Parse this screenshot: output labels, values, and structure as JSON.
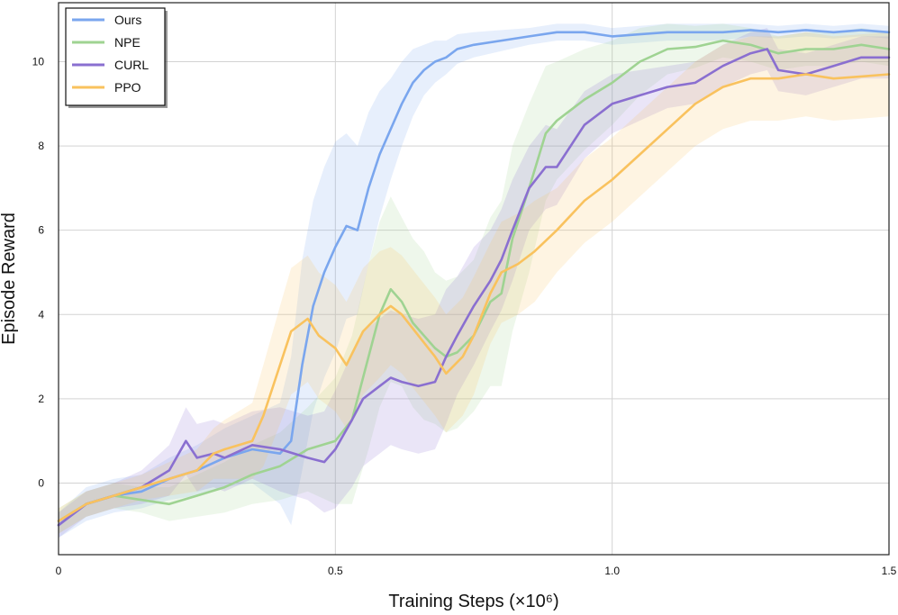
{
  "chart_data": {
    "type": "line",
    "title": "",
    "xlabel": "Training Steps (×10⁶)",
    "ylabel": "Episode Reward",
    "xlim": [
      0,
      1.5
    ],
    "ylim": [
      -1.7,
      11.4
    ],
    "x_ticks": [
      {
        "value": 0,
        "label": "0"
      },
      {
        "value": 0.5,
        "label": "0.5"
      },
      {
        "value": 1.0,
        "label": "1.0"
      },
      {
        "value": 1.5,
        "label": "1.5"
      }
    ],
    "y_ticks": [
      {
        "value": 0,
        "label": "0"
      },
      {
        "value": 2,
        "label": "2"
      },
      {
        "value": 4,
        "label": "4"
      },
      {
        "value": 6,
        "label": "6"
      },
      {
        "value": 8,
        "label": "8"
      },
      {
        "value": 10,
        "label": "10"
      }
    ],
    "grid": true,
    "legend_position": "top-left",
    "series": [
      {
        "name": "Ours",
        "color": "#7aa6ee",
        "x": [
          0,
          0.05,
          0.1,
          0.15,
          0.2,
          0.25,
          0.3,
          0.35,
          0.4,
          0.42,
          0.44,
          0.46,
          0.48,
          0.5,
          0.52,
          0.54,
          0.56,
          0.58,
          0.6,
          0.62,
          0.64,
          0.66,
          0.68,
          0.7,
          0.72,
          0.75,
          0.8,
          0.85,
          0.9,
          0.95,
          1.0,
          1.05,
          1.1,
          1.15,
          1.2,
          1.25,
          1.3,
          1.35,
          1.4,
          1.45,
          1.5
        ],
        "y": [
          -1.0,
          -0.5,
          -0.3,
          -0.2,
          0.1,
          0.3,
          0.6,
          0.8,
          0.7,
          1.0,
          2.8,
          4.2,
          5.0,
          5.6,
          6.1,
          6.0,
          7.0,
          7.8,
          8.4,
          9.0,
          9.5,
          9.8,
          10.0,
          10.1,
          10.3,
          10.4,
          10.5,
          10.6,
          10.7,
          10.7,
          10.6,
          10.65,
          10.7,
          10.7,
          10.7,
          10.75,
          10.7,
          10.75,
          10.7,
          10.75,
          10.7
        ],
        "band": [
          0.3,
          0.4,
          0.4,
          0.4,
          0.5,
          0.6,
          0.7,
          0.8,
          1.2,
          2.0,
          2.5,
          2.5,
          2.5,
          2.5,
          2.2,
          2.0,
          1.8,
          1.5,
          1.2,
          1.0,
          0.8,
          0.6,
          0.5,
          0.4,
          0.35,
          0.3,
          0.25,
          0.2,
          0.2,
          0.2,
          0.2,
          0.2,
          0.2,
          0.2,
          0.2,
          0.15,
          0.15,
          0.15,
          0.15,
          0.15,
          0.15
        ]
      },
      {
        "name": "NPE",
        "color": "#9fd392",
        "x": [
          0,
          0.05,
          0.1,
          0.15,
          0.2,
          0.25,
          0.3,
          0.35,
          0.4,
          0.45,
          0.5,
          0.53,
          0.56,
          0.58,
          0.6,
          0.62,
          0.64,
          0.66,
          0.68,
          0.7,
          0.72,
          0.75,
          0.78,
          0.8,
          0.82,
          0.85,
          0.88,
          0.9,
          0.95,
          1.0,
          1.05,
          1.1,
          1.15,
          1.2,
          1.25,
          1.3,
          1.35,
          1.4,
          1.45,
          1.5
        ],
        "y": [
          -0.9,
          -0.5,
          -0.3,
          -0.4,
          -0.5,
          -0.3,
          -0.1,
          0.2,
          0.4,
          0.8,
          1.0,
          1.5,
          3.0,
          4.0,
          4.6,
          4.3,
          3.8,
          3.5,
          3.2,
          3.0,
          3.1,
          3.5,
          4.3,
          4.5,
          5.8,
          7.0,
          8.3,
          8.6,
          9.1,
          9.5,
          10.0,
          10.3,
          10.35,
          10.5,
          10.4,
          10.2,
          10.3,
          10.3,
          10.4,
          10.3
        ],
        "band": [
          0.3,
          0.3,
          0.3,
          0.3,
          0.4,
          0.5,
          0.6,
          0.7,
          0.8,
          1.0,
          1.5,
          2.0,
          2.2,
          2.2,
          2.2,
          2.0,
          2.0,
          2.0,
          1.8,
          1.8,
          1.8,
          1.8,
          2.0,
          2.2,
          2.2,
          2.0,
          1.6,
          1.4,
          1.2,
          1.0,
          0.8,
          0.6,
          0.5,
          0.4,
          0.4,
          0.4,
          0.4,
          0.4,
          0.4,
          0.4
        ]
      },
      {
        "name": "CURL",
        "color": "#8a6fd0",
        "x": [
          0,
          0.05,
          0.1,
          0.15,
          0.2,
          0.23,
          0.25,
          0.28,
          0.3,
          0.35,
          0.4,
          0.45,
          0.48,
          0.5,
          0.53,
          0.55,
          0.58,
          0.6,
          0.62,
          0.65,
          0.68,
          0.7,
          0.72,
          0.75,
          0.78,
          0.8,
          0.82,
          0.85,
          0.88,
          0.9,
          0.95,
          1.0,
          1.05,
          1.1,
          1.15,
          1.2,
          1.25,
          1.28,
          1.3,
          1.35,
          1.4,
          1.45,
          1.5
        ],
        "y": [
          -1.0,
          -0.5,
          -0.3,
          -0.1,
          0.3,
          1.0,
          0.6,
          0.7,
          0.6,
          0.9,
          0.8,
          0.6,
          0.5,
          0.8,
          1.5,
          2.0,
          2.3,
          2.5,
          2.4,
          2.3,
          2.4,
          3.0,
          3.5,
          4.2,
          4.8,
          5.3,
          6.0,
          7.0,
          7.5,
          7.5,
          8.5,
          9.0,
          9.2,
          9.4,
          9.5,
          9.9,
          10.2,
          10.3,
          9.8,
          9.7,
          9.9,
          10.1,
          10.1
        ],
        "band": [
          0.3,
          0.3,
          0.3,
          0.4,
          0.6,
          0.8,
          0.8,
          0.8,
          0.8,
          0.8,
          1.0,
          1.0,
          1.2,
          1.4,
          1.6,
          1.6,
          1.6,
          1.6,
          1.6,
          1.6,
          1.6,
          1.6,
          1.4,
          1.4,
          1.2,
          1.2,
          1.2,
          1.0,
          1.0,
          0.9,
          0.8,
          0.7,
          0.6,
          0.5,
          0.5,
          0.5,
          0.5,
          0.5,
          0.5,
          0.5,
          0.5,
          0.5,
          0.5
        ]
      },
      {
        "name": "PPO",
        "color": "#f9c25e",
        "x": [
          0,
          0.05,
          0.1,
          0.15,
          0.2,
          0.25,
          0.28,
          0.3,
          0.35,
          0.37,
          0.4,
          0.42,
          0.45,
          0.47,
          0.5,
          0.52,
          0.55,
          0.58,
          0.6,
          0.62,
          0.65,
          0.68,
          0.7,
          0.73,
          0.75,
          0.78,
          0.8,
          0.83,
          0.86,
          0.9,
          0.95,
          1.0,
          1.05,
          1.1,
          1.15,
          1.2,
          1.25,
          1.3,
          1.35,
          1.4,
          1.45,
          1.5
        ],
        "y": [
          -0.9,
          -0.5,
          -0.3,
          -0.1,
          0.1,
          0.3,
          0.7,
          0.8,
          1.0,
          1.6,
          2.8,
          3.6,
          3.9,
          3.5,
          3.2,
          2.8,
          3.6,
          4.0,
          4.2,
          4.0,
          3.5,
          3.0,
          2.6,
          3.0,
          3.5,
          4.5,
          5.0,
          5.2,
          5.5,
          6.0,
          6.7,
          7.2,
          7.8,
          8.4,
          9.0,
          9.4,
          9.6,
          9.6,
          9.7,
          9.6,
          9.65,
          9.7
        ],
        "band": [
          0.3,
          0.3,
          0.3,
          0.3,
          0.4,
          0.5,
          0.6,
          0.7,
          0.9,
          1.2,
          1.4,
          1.5,
          1.5,
          1.5,
          1.5,
          1.5,
          1.5,
          1.5,
          1.4,
          1.4,
          1.4,
          1.4,
          1.4,
          1.4,
          1.4,
          1.2,
          1.2,
          1.2,
          1.2,
          1.0,
          1.0,
          1.0,
          1.0,
          1.0,
          1.0,
          1.0,
          1.0,
          1.0,
          1.0,
          1.0,
          1.0,
          1.0
        ]
      }
    ]
  }
}
